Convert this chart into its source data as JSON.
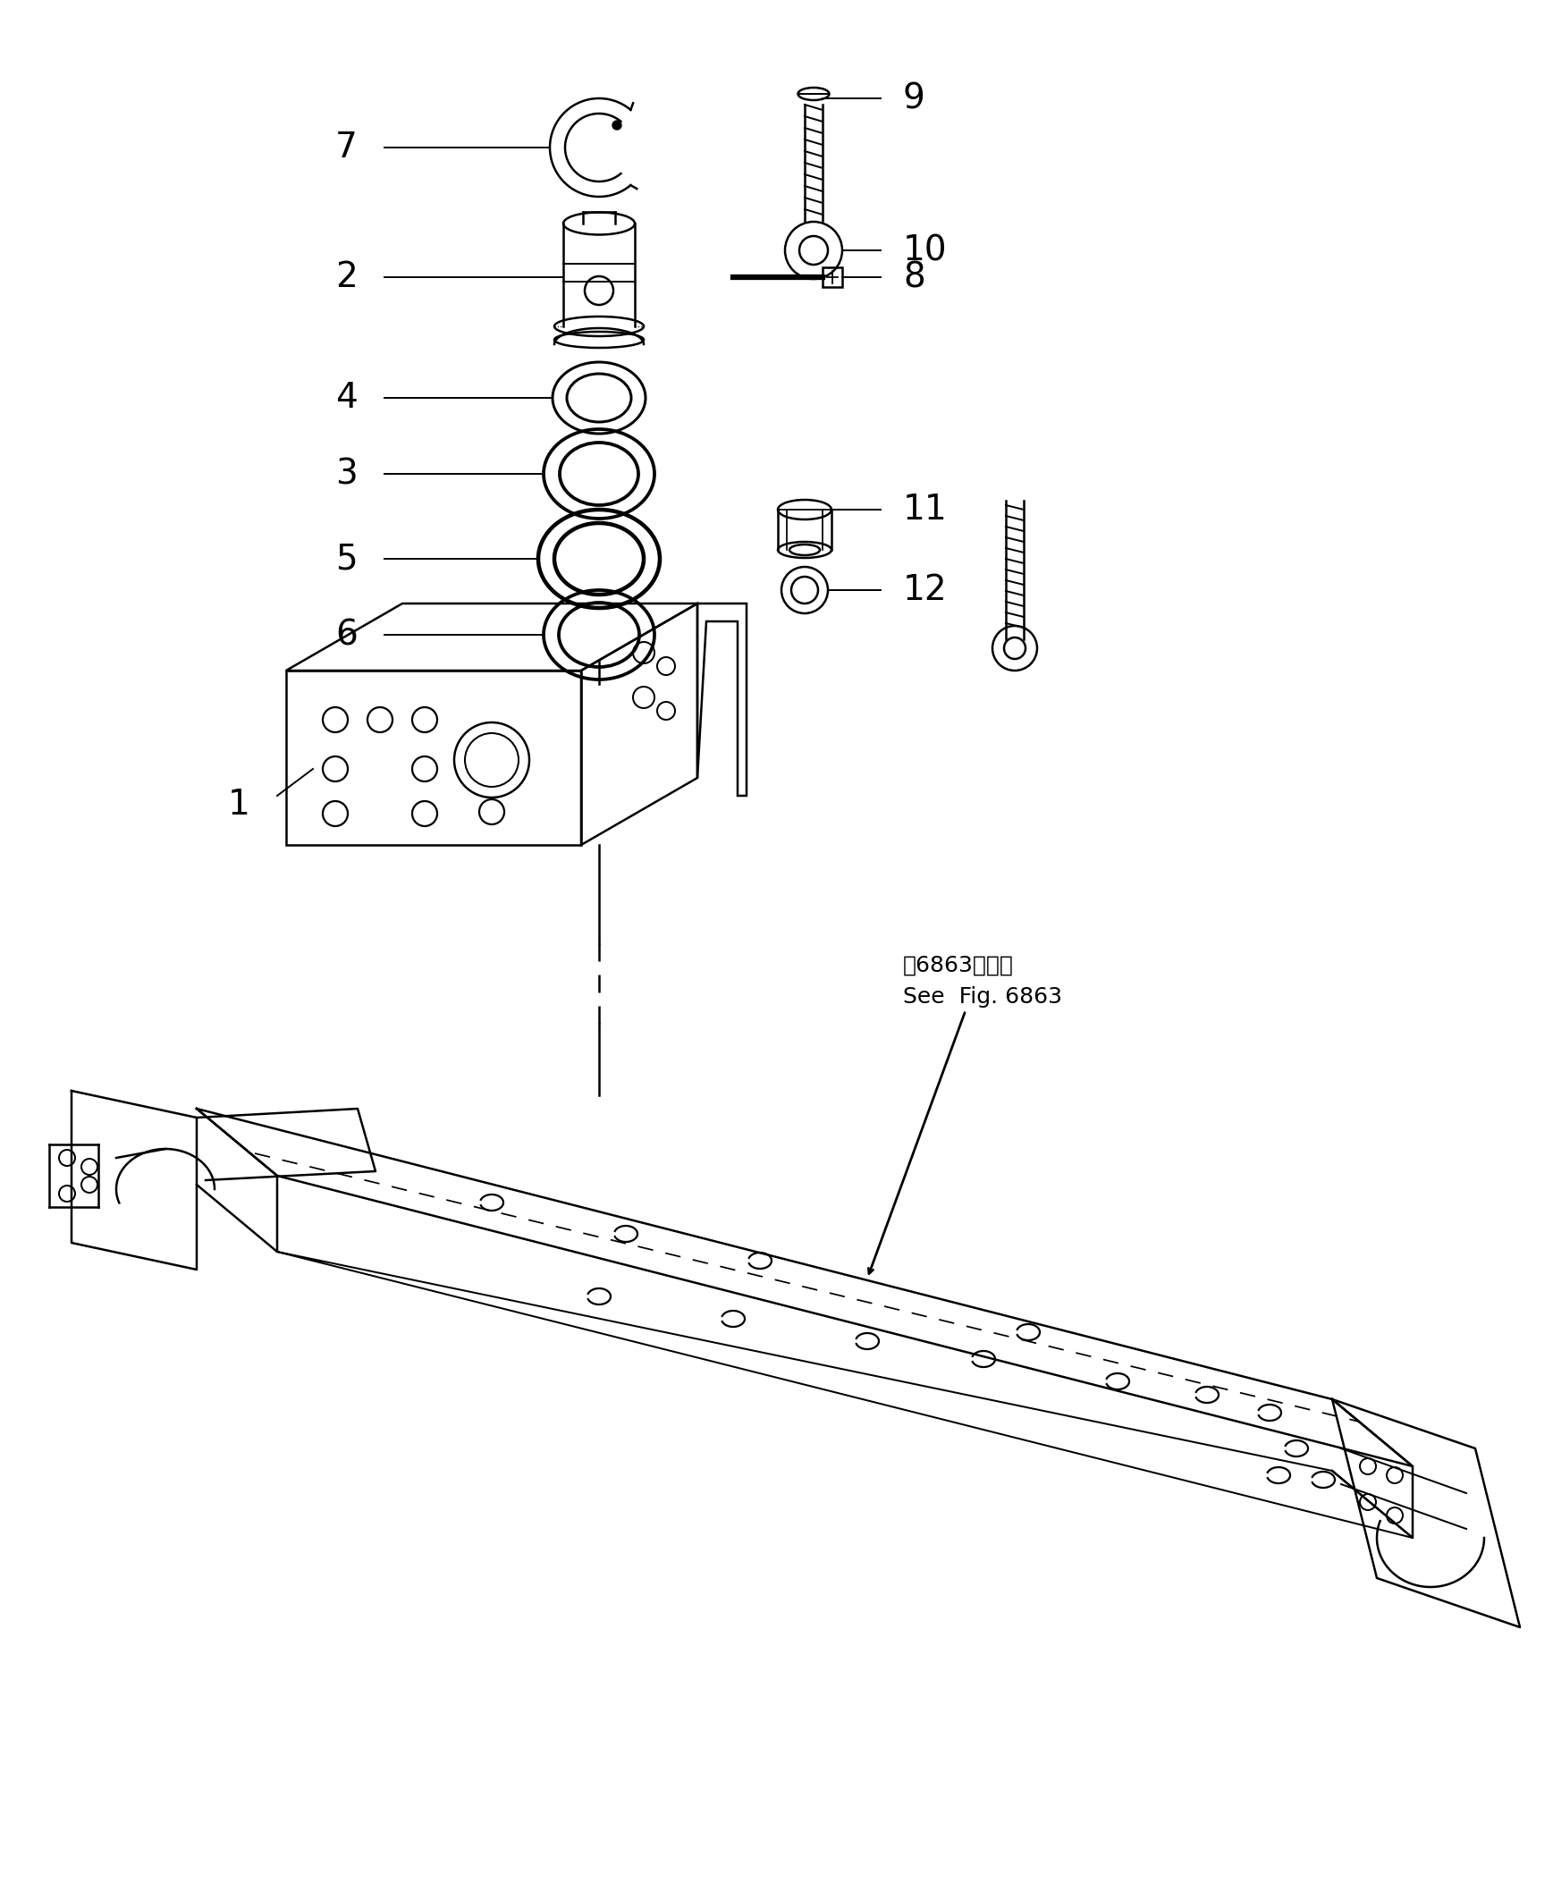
{
  "bg_color": "#ffffff",
  "lc": "#000000",
  "fig_width": 17.37,
  "fig_height": 21.15,
  "annotation_text1": "第6863図参照",
  "annotation_text2": "See  Fig. 6863"
}
